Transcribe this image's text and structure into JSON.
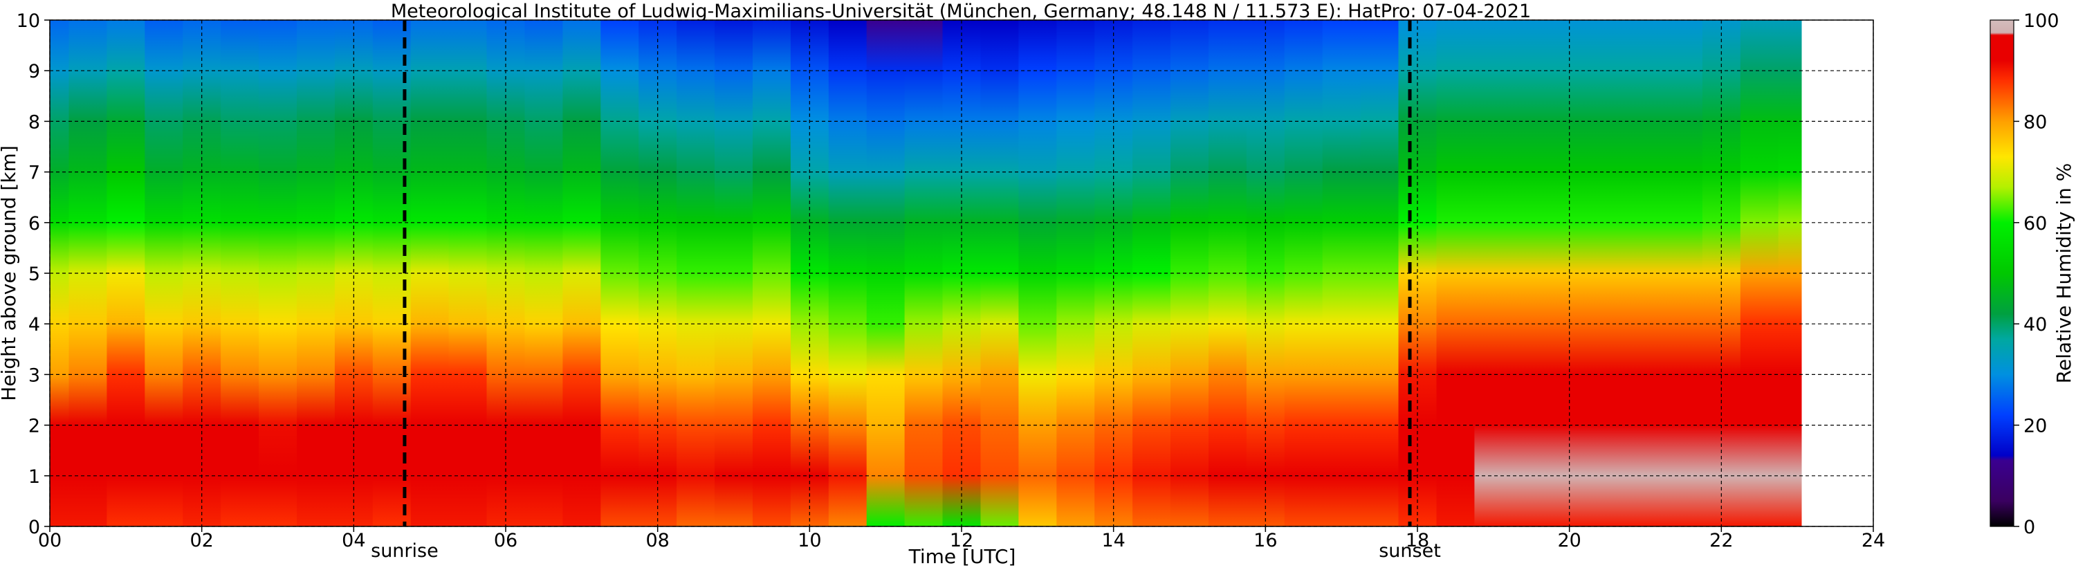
{
  "chart_data": {
    "type": "heatmap",
    "title": "Meteorological Institute of Ludwig-Maximilians-Universität (München, Germany; 48.148 N / 11.573 E):    HatPro: 07-04-2021",
    "xlabel": "Time [UTC]",
    "ylabel": "Height above ground [km]",
    "xlim": [
      0,
      24
    ],
    "ylim": [
      0,
      10
    ],
    "x_ticks": [
      "00",
      "02",
      "04",
      "06",
      "08",
      "10",
      "12",
      "14",
      "16",
      "18",
      "20",
      "22",
      "24"
    ],
    "x_tick_values": [
      0,
      2,
      4,
      6,
      8,
      10,
      12,
      14,
      16,
      18,
      20,
      22,
      24
    ],
    "y_ticks": [
      "0",
      "1",
      "2",
      "3",
      "4",
      "5",
      "6",
      "7",
      "8",
      "9",
      "10"
    ],
    "y_tick_values": [
      0,
      1,
      2,
      3,
      4,
      5,
      6,
      7,
      8,
      9,
      10
    ],
    "grid": true,
    "data_end_time": 23.05,
    "markers": [
      {
        "label": "sunrise",
        "time": 4.67
      },
      {
        "label": "sunset",
        "time": 17.9
      }
    ],
    "colorbar": {
      "label": "Relative Humidity in %",
      "min": 0,
      "max": 100,
      "ticks": [
        "0",
        "20",
        "40",
        "60",
        "80",
        "100"
      ],
      "tick_values": [
        0,
        20,
        40,
        60,
        80,
        100
      ],
      "stops": [
        {
          "value": 0,
          "color": "#000000"
        },
        {
          "value": 5,
          "color": "#3a0060"
        },
        {
          "value": 13,
          "color": "#3a0090"
        },
        {
          "value": 14,
          "color": "#0000c8"
        },
        {
          "value": 22,
          "color": "#0040ff"
        },
        {
          "value": 30,
          "color": "#0090e0"
        },
        {
          "value": 37,
          "color": "#00a8a0"
        },
        {
          "value": 42,
          "color": "#00a040"
        },
        {
          "value": 50,
          "color": "#00c800"
        },
        {
          "value": 60,
          "color": "#00f000"
        },
        {
          "value": 67,
          "color": "#b4f000"
        },
        {
          "value": 73,
          "color": "#ffe600"
        },
        {
          "value": 80,
          "color": "#ffa000"
        },
        {
          "value": 88,
          "color": "#ff3000"
        },
        {
          "value": 92,
          "color": "#e80000"
        },
        {
          "value": 97,
          "color": "#e80000"
        },
        {
          "value": 97.5,
          "color": "#d0b0b0"
        },
        {
          "value": 100,
          "color": "#d4bcbc"
        }
      ]
    },
    "series": [
      {
        "time": 0.0,
        "rh": [
          90,
          96,
          92,
          80,
          75,
          68,
          55,
          45,
          40,
          32,
          26
        ]
      },
      {
        "time": 0.5,
        "rh": [
          90,
          95,
          93,
          82,
          76,
          70,
          57,
          47,
          42,
          34,
          27
        ]
      },
      {
        "time": 1.0,
        "rh": [
          88,
          97,
          95,
          88,
          78,
          72,
          60,
          50,
          44,
          36,
          28
        ]
      },
      {
        "time": 1.5,
        "rh": [
          88,
          95,
          92,
          82,
          75,
          68,
          55,
          45,
          40,
          32,
          25
        ]
      },
      {
        "time": 2.0,
        "rh": [
          89,
          96,
          93,
          85,
          76,
          69,
          56,
          46,
          41,
          33,
          26
        ]
      },
      {
        "time": 2.5,
        "rh": [
          88,
          95,
          92,
          82,
          75,
          68,
          55,
          46,
          40,
          33,
          25
        ]
      },
      {
        "time": 3.0,
        "rh": [
          88,
          95,
          91,
          81,
          74,
          67,
          55,
          45,
          40,
          32,
          25
        ]
      },
      {
        "time": 3.5,
        "rh": [
          89,
          95,
          92,
          82,
          75,
          68,
          56,
          46,
          41,
          33,
          26
        ]
      },
      {
        "time": 4.0,
        "rh": [
          89,
          96,
          93,
          86,
          76,
          70,
          58,
          47,
          42,
          34,
          26
        ]
      },
      {
        "time": 4.5,
        "rh": [
          88,
          95,
          92,
          84,
          75,
          69,
          57,
          46,
          41,
          33,
          25
        ]
      },
      {
        "time": 5.0,
        "rh": [
          90,
          96,
          94,
          88,
          78,
          71,
          58,
          47,
          42,
          35,
          27
        ]
      },
      {
        "time": 5.5,
        "rh": [
          90,
          97,
          94,
          88,
          77,
          70,
          58,
          47,
          42,
          35,
          27
        ]
      },
      {
        "time": 6.0,
        "rh": [
          89,
          95,
          92,
          84,
          76,
          69,
          56,
          46,
          41,
          33,
          26
        ]
      },
      {
        "time": 6.5,
        "rh": [
          89,
          95,
          92,
          84,
          75,
          68,
          56,
          45,
          40,
          33,
          25
        ]
      },
      {
        "time": 7.0,
        "rh": [
          90,
          97,
          94,
          87,
          77,
          70,
          58,
          47,
          42,
          35,
          27
        ]
      },
      {
        "time": 7.5,
        "rh": [
          86,
          92,
          88,
          79,
          73,
          64,
          52,
          43,
          38,
          30,
          22
        ]
      },
      {
        "time": 8.0,
        "rh": [
          86,
          92,
          87,
          78,
          72,
          63,
          51,
          42,
          36,
          28,
          20
        ]
      },
      {
        "time": 8.5,
        "rh": [
          84,
          91,
          86,
          77,
          71,
          62,
          50,
          41,
          35,
          27,
          18
        ]
      },
      {
        "time": 9.0,
        "rh": [
          84,
          92,
          86,
          78,
          71,
          62,
          50,
          40,
          34,
          26,
          17
        ]
      },
      {
        "time": 9.5,
        "rh": [
          86,
          93,
          88,
          80,
          72,
          64,
          52,
          42,
          36,
          28,
          18
        ]
      },
      {
        "time": 10.0,
        "rh": [
          84,
          92,
          84,
          74,
          66,
          58,
          46,
          36,
          30,
          24,
          16
        ]
      },
      {
        "time": 10.5,
        "rh": [
          82,
          90,
          82,
          72,
          64,
          55,
          44,
          34,
          28,
          21,
          14
        ]
      },
      {
        "time": 11.0,
        "rh": [
          60,
          82,
          78,
          74,
          62,
          54,
          44,
          34,
          27,
          20,
          13
        ]
      },
      {
        "time": 11.5,
        "rh": [
          62,
          86,
          84,
          76,
          66,
          56,
          46,
          36,
          28,
          20,
          13
        ]
      },
      {
        "time": 12.0,
        "rh": [
          58,
          88,
          86,
          78,
          68,
          58,
          46,
          36,
          28,
          21,
          14
        ]
      },
      {
        "time": 12.5,
        "rh": [
          64,
          86,
          84,
          80,
          70,
          58,
          46,
          36,
          28,
          20,
          14
        ]
      },
      {
        "time": 13.0,
        "rh": [
          76,
          84,
          80,
          72,
          64,
          54,
          44,
          35,
          29,
          22,
          15
        ]
      },
      {
        "time": 13.5,
        "rh": [
          80,
          86,
          82,
          74,
          66,
          56,
          45,
          36,
          30,
          23,
          16
        ]
      },
      {
        "time": 14.0,
        "rh": [
          82,
          88,
          84,
          76,
          68,
          58,
          46,
          37,
          31,
          24,
          17
        ]
      },
      {
        "time": 14.5,
        "rh": [
          84,
          90,
          86,
          78,
          70,
          60,
          48,
          38,
          32,
          25,
          18
        ]
      },
      {
        "time": 15.0,
        "rh": [
          84,
          91,
          87,
          80,
          71,
          62,
          50,
          40,
          34,
          26,
          19
        ]
      },
      {
        "time": 15.5,
        "rh": [
          85,
          92,
          88,
          82,
          72,
          63,
          51,
          41,
          35,
          27,
          20
        ]
      },
      {
        "time": 16.0,
        "rh": [
          85,
          92,
          87,
          80,
          71,
          62,
          50,
          40,
          35,
          27,
          20
        ]
      },
      {
        "time": 16.5,
        "rh": [
          86,
          92,
          88,
          80,
          72,
          63,
          51,
          41,
          36,
          28,
          21
        ]
      },
      {
        "time": 17.0,
        "rh": [
          86,
          92,
          88,
          80,
          72,
          64,
          52,
          42,
          36,
          29,
          22
        ]
      },
      {
        "time": 17.5,
        "rh": [
          86,
          92,
          88,
          80,
          72,
          64,
          52,
          42,
          37,
          29,
          22
        ]
      },
      {
        "time": 18.0,
        "rh": [
          88,
          95,
          93,
          90,
          82,
          75,
          60,
          48,
          43,
          36,
          30
        ]
      },
      {
        "time": 18.5,
        "rh": [
          90,
          97,
          96,
          92,
          84,
          76,
          61,
          50,
          44,
          37,
          31
        ]
      },
      {
        "time": 19.0,
        "rh": [
          90,
          98,
          96,
          92,
          84,
          76,
          61,
          50,
          44,
          37,
          31
        ]
      },
      {
        "time": 19.5,
        "rh": [
          90,
          98,
          96,
          92,
          84,
          76,
          61,
          50,
          44,
          37,
          31
        ]
      },
      {
        "time": 20.0,
        "rh": [
          90,
          98,
          96,
          92,
          84,
          76,
          61,
          50,
          44,
          37,
          31
        ]
      },
      {
        "time": 20.5,
        "rh": [
          90,
          98,
          96,
          92,
          84,
          76,
          61,
          50,
          44,
          37,
          31
        ]
      },
      {
        "time": 21.0,
        "rh": [
          90,
          98,
          96,
          92,
          84,
          76,
          61,
          50,
          44,
          37,
          31
        ]
      },
      {
        "time": 21.5,
        "rh": [
          90,
          98,
          96,
          92,
          84,
          76,
          61,
          50,
          44,
          37,
          31
        ]
      },
      {
        "time": 22.0,
        "rh": [
          90,
          98,
          96,
          92,
          84,
          76,
          62,
          51,
          45,
          38,
          32
        ]
      },
      {
        "time": 22.5,
        "rh": [
          90,
          98,
          97,
          94,
          88,
          80,
          65,
          54,
          48,
          40,
          34
        ]
      },
      {
        "time": 23.0,
        "rh": [
          90,
          98,
          97,
          94,
          88,
          80,
          66,
          55,
          48,
          40,
          34
        ]
      }
    ]
  }
}
